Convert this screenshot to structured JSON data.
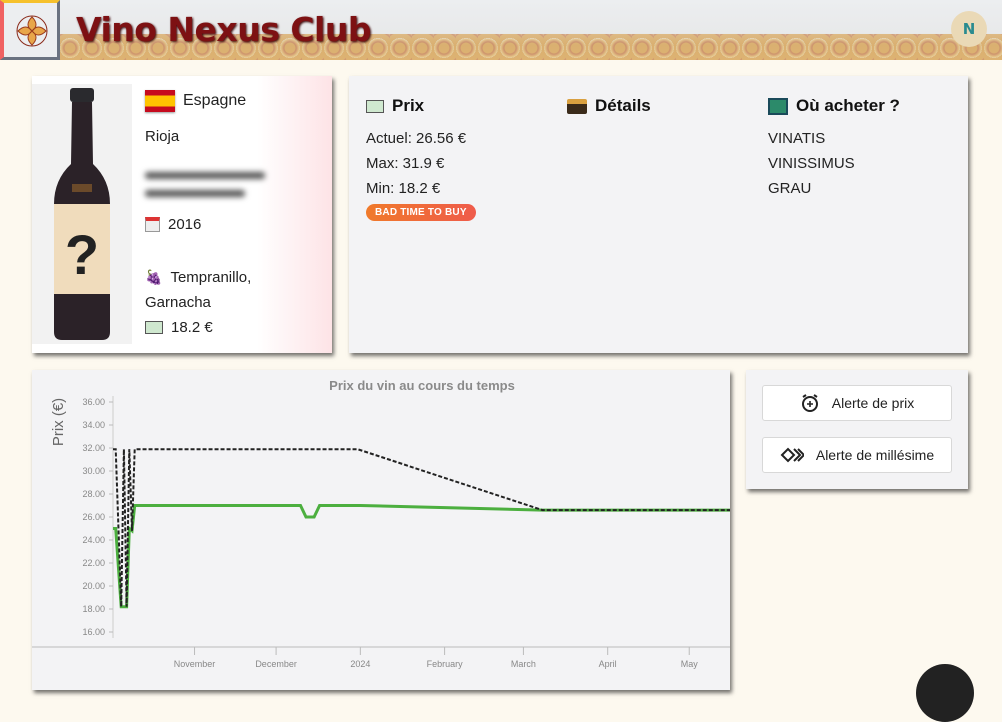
{
  "header": {
    "brand": "Vino Nexus Club",
    "avatar_initial": "N",
    "logo_icon": "flower-logo-icon"
  },
  "wine": {
    "country": "Espagne",
    "country_flag": "spain-flag-icon",
    "region": "Rioja",
    "vintage": "2016",
    "grapes_line1": "Tempranillo,",
    "grapes_line2": "Garnacha",
    "price": "18.2 €",
    "label_mark": "?"
  },
  "prix": {
    "title": "Prix",
    "current": "Actuel: 26.56 €",
    "max": "Max: 31.9 €",
    "min": "Min: 18.2 €",
    "badge": "BAD TIME TO BUY",
    "badge_color": "#f07a2a"
  },
  "details": {
    "title": "Détails"
  },
  "where": {
    "title": "Où acheter ?",
    "shops": [
      "VINATIS",
      "VINISSIMUS",
      "GRAU"
    ]
  },
  "alerts": {
    "price_alert": "Alerte de prix",
    "vintage_alert": "Alerte de millésime"
  },
  "chart_data": {
    "type": "line",
    "title": "Prix du vin au cours du temps",
    "ylabel": "Prix (€)",
    "xlabel": "",
    "ylim": [
      16,
      36
    ],
    "xlim": [
      "2023-10-02",
      "2024-05-16"
    ],
    "yticks": [
      "16.00",
      "18.00",
      "20.00",
      "22.00",
      "24.00",
      "26.00",
      "28.00",
      "30.00",
      "32.00",
      "34.00",
      "36.00"
    ],
    "xticks": [
      {
        "date": "2023-11-01",
        "label": "November"
      },
      {
        "date": "2023-12-01",
        "label": "December"
      },
      {
        "date": "2024-01-01",
        "label": "2024"
      },
      {
        "date": "2024-02-01",
        "label": "February"
      },
      {
        "date": "2024-03-01",
        "label": "March"
      },
      {
        "date": "2024-04-01",
        "label": "April"
      },
      {
        "date": "2024-05-01",
        "label": "May"
      }
    ],
    "grid": false,
    "series": [
      {
        "style": "solid",
        "color": "#4caf3f",
        "points": [
          [
            "2023-10-02",
            25
          ],
          [
            "2023-10-03",
            25
          ],
          [
            "2023-10-05",
            18.2
          ],
          [
            "2023-10-07",
            18.2
          ],
          [
            "2023-10-08",
            25
          ],
          [
            "2023-10-09",
            24.8
          ],
          [
            "2023-10-10",
            27
          ],
          [
            "2023-12-10",
            27
          ],
          [
            "2023-12-12",
            26
          ],
          [
            "2023-12-15",
            26
          ],
          [
            "2023-12-17",
            27
          ],
          [
            "2024-01-01",
            27
          ],
          [
            "2024-03-08",
            26.6
          ],
          [
            "2024-05-16",
            26.6
          ]
        ]
      },
      {
        "style": "dashed",
        "color": "#222222",
        "points": [
          [
            "2023-10-02",
            31.9
          ],
          [
            "2023-10-03",
            31.9
          ],
          [
            "2023-10-05",
            18.2
          ],
          [
            "2023-10-06",
            31.9
          ],
          [
            "2023-10-07",
            18.2
          ],
          [
            "2023-10-08",
            31.9
          ],
          [
            "2023-10-09",
            24.8
          ],
          [
            "2023-10-10",
            31.9
          ],
          [
            "2023-12-31",
            31.9
          ],
          [
            "2024-03-08",
            26.6
          ],
          [
            "2024-05-16",
            26.6
          ]
        ]
      }
    ]
  }
}
